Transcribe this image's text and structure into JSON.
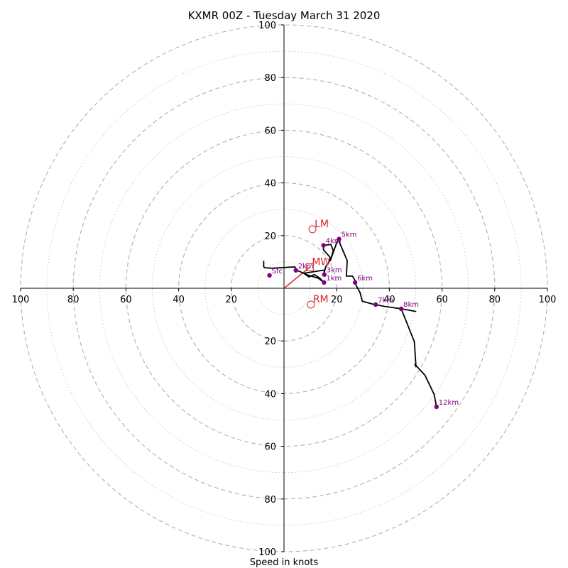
{
  "chart_data": {
    "type": "scatter",
    "title": "KXMR 00Z - Tuesday March 31 2020",
    "xlabel": "Speed in knots",
    "ylabel": "",
    "xlim": [
      -100,
      100
    ],
    "ylim": [
      -100,
      100
    ],
    "grid": "polar rings",
    "ring_major": [
      20,
      40,
      60,
      80,
      100
    ],
    "ring_minor": [
      10,
      30,
      50,
      70,
      90
    ],
    "x_ticks": [
      "100",
      "80",
      "60",
      "40",
      "20",
      "20",
      "40",
      "60",
      "80",
      "100"
    ],
    "x_tick_values": [
      -100,
      -80,
      -60,
      -40,
      -20,
      20,
      40,
      60,
      80,
      100
    ],
    "y_ticks": [
      "100",
      "80",
      "60",
      "40",
      "20",
      "20",
      "40",
      "60",
      "80",
      "100"
    ],
    "y_tick_values": [
      100,
      80,
      60,
      40,
      20,
      -20,
      -40,
      -60,
      -80,
      -100
    ],
    "hodograph_trace": [
      [
        -7.7,
        10.4
      ],
      [
        -7.7,
        8.2
      ],
      [
        -7.3,
        7.8
      ],
      [
        -4.5,
        7.6
      ],
      [
        4.1,
        8.1
      ],
      [
        5.0,
        6.8
      ],
      [
        9.0,
        5.0
      ],
      [
        13.0,
        3.8
      ],
      [
        15.2,
        2.2
      ],
      [
        13.5,
        3.9
      ],
      [
        11.5,
        5.2
      ],
      [
        9.5,
        4.3
      ],
      [
        7.5,
        5.7
      ],
      [
        15.3,
        6.9
      ],
      [
        15.2,
        5.8
      ],
      [
        15.9,
        8.3
      ],
      [
        16.8,
        9.4
      ],
      [
        17.7,
        11.5
      ],
      [
        15.0,
        14.6
      ],
      [
        14.9,
        16.3
      ],
      [
        17.8,
        16.6
      ],
      [
        18.7,
        14.3
      ],
      [
        17.9,
        11.4
      ],
      [
        17.6,
        10.5
      ],
      [
        20.5,
        18.7
      ],
      [
        24.0,
        10.5
      ],
      [
        23.7,
        4.6
      ],
      [
        26.0,
        4.6
      ],
      [
        27.4,
        2.2
      ],
      [
        27.0,
        1.8
      ],
      [
        28.9,
        -1.7
      ],
      [
        29.7,
        -4.9
      ],
      [
        33.6,
        -6.0
      ],
      [
        38.3,
        -6.9
      ],
      [
        44.5,
        -7.8
      ],
      [
        50.0,
        -8.8
      ],
      [
        44.5,
        -7.8
      ],
      [
        49.5,
        -20.3
      ],
      [
        50.1,
        -29.8
      ],
      [
        49.7,
        -28.9
      ],
      [
        53.5,
        -33.0
      ],
      [
        57.0,
        -40.3
      ],
      [
        57.9,
        -45.0
      ]
    ],
    "height_markers": [
      {
        "label": "Sfc",
        "x": -5.5,
        "y": 4.9
      },
      {
        "label": "1km",
        "x": 15.2,
        "y": 2.2
      },
      {
        "label": "2km",
        "x": 4.5,
        "y": 6.8
      },
      {
        "label": "3km",
        "x": 15.3,
        "y": 5.2
      },
      {
        "label": "4km",
        "x": 15.0,
        "y": 16.3
      },
      {
        "label": "5km",
        "x": 20.9,
        "y": 18.7
      },
      {
        "label": "6km",
        "x": 27.0,
        "y": 2.2
      },
      {
        "label": "7km",
        "x": 34.8,
        "y": -6.2
      },
      {
        "label": "8km",
        "x": 44.5,
        "y": -7.8
      },
      {
        "label": "12km",
        "x": 57.9,
        "y": -45.0
      }
    ],
    "storm_motion": [
      {
        "label": "LM",
        "x": 10.8,
        "y": 22.4,
        "marker": "circle"
      },
      {
        "label": "MW",
        "x": 9.8,
        "y": 8.0,
        "marker": "square"
      },
      {
        "label": "RM",
        "x": 10.2,
        "y": -6.2,
        "marker": "circle"
      }
    ],
    "mean_wind_vector": {
      "x0": 0,
      "y0": 0,
      "x1": 9.8,
      "y1": 8.0
    },
    "colors": {
      "trace": "#000000",
      "markers": "#800080",
      "storm_motion": "#d62728",
      "grid": "#b0b0b0",
      "axes": "#000000"
    }
  }
}
